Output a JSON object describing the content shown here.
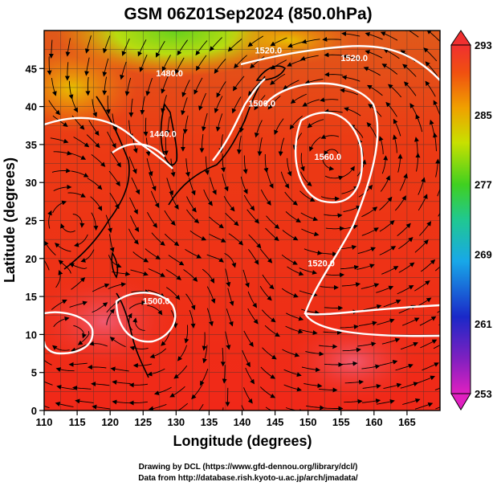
{
  "title": "GSM 06Z01Sep2024 (850.0hPa)",
  "x_axis": {
    "label": "Longitude (degrees)",
    "min": 110,
    "max": 170,
    "ticks": [
      110,
      115,
      120,
      125,
      130,
      135,
      140,
      145,
      150,
      155,
      160,
      165
    ]
  },
  "y_axis": {
    "label": "Latitude  (degrees)",
    "min": 0,
    "max": 50,
    "ticks": [
      0,
      5,
      10,
      15,
      20,
      25,
      30,
      35,
      40,
      45
    ]
  },
  "colorbar": {
    "min": 253,
    "max": 293,
    "labels": [
      293,
      285,
      277,
      269,
      261,
      253
    ],
    "colors": [
      "#d040c0",
      "#7a20c0",
      "#1a30c8",
      "#1aa0e0",
      "#20c080",
      "#40d020",
      "#c8e000",
      "#f0a000",
      "#f05010",
      "#f03020"
    ]
  },
  "contours": {
    "labels": [
      {
        "text": "1440.0",
        "lon": 128,
        "lat": 36
      },
      {
        "text": "1480.0",
        "lon": 129,
        "lat": 44
      },
      {
        "text": "1500.0",
        "lon": 143,
        "lat": 40
      },
      {
        "text": "1520.0",
        "lon": 144,
        "lat": 47
      },
      {
        "text": "1520.0",
        "lon": 157,
        "lat": 46
      },
      {
        "text": "1560.0",
        "lon": 153,
        "lat": 33
      },
      {
        "text": "1520.0",
        "lon": 152,
        "lat": 19
      },
      {
        "text": "1500.0",
        "lon": 127,
        "lat": 14
      }
    ]
  },
  "credits": {
    "line1": "Drawing by DCL (https://www.gfd-dennou.org/library/dcl/)",
    "line2": "Data from http://database.rish.kyoto-u.ac.jp/arch/jmadata/"
  }
}
